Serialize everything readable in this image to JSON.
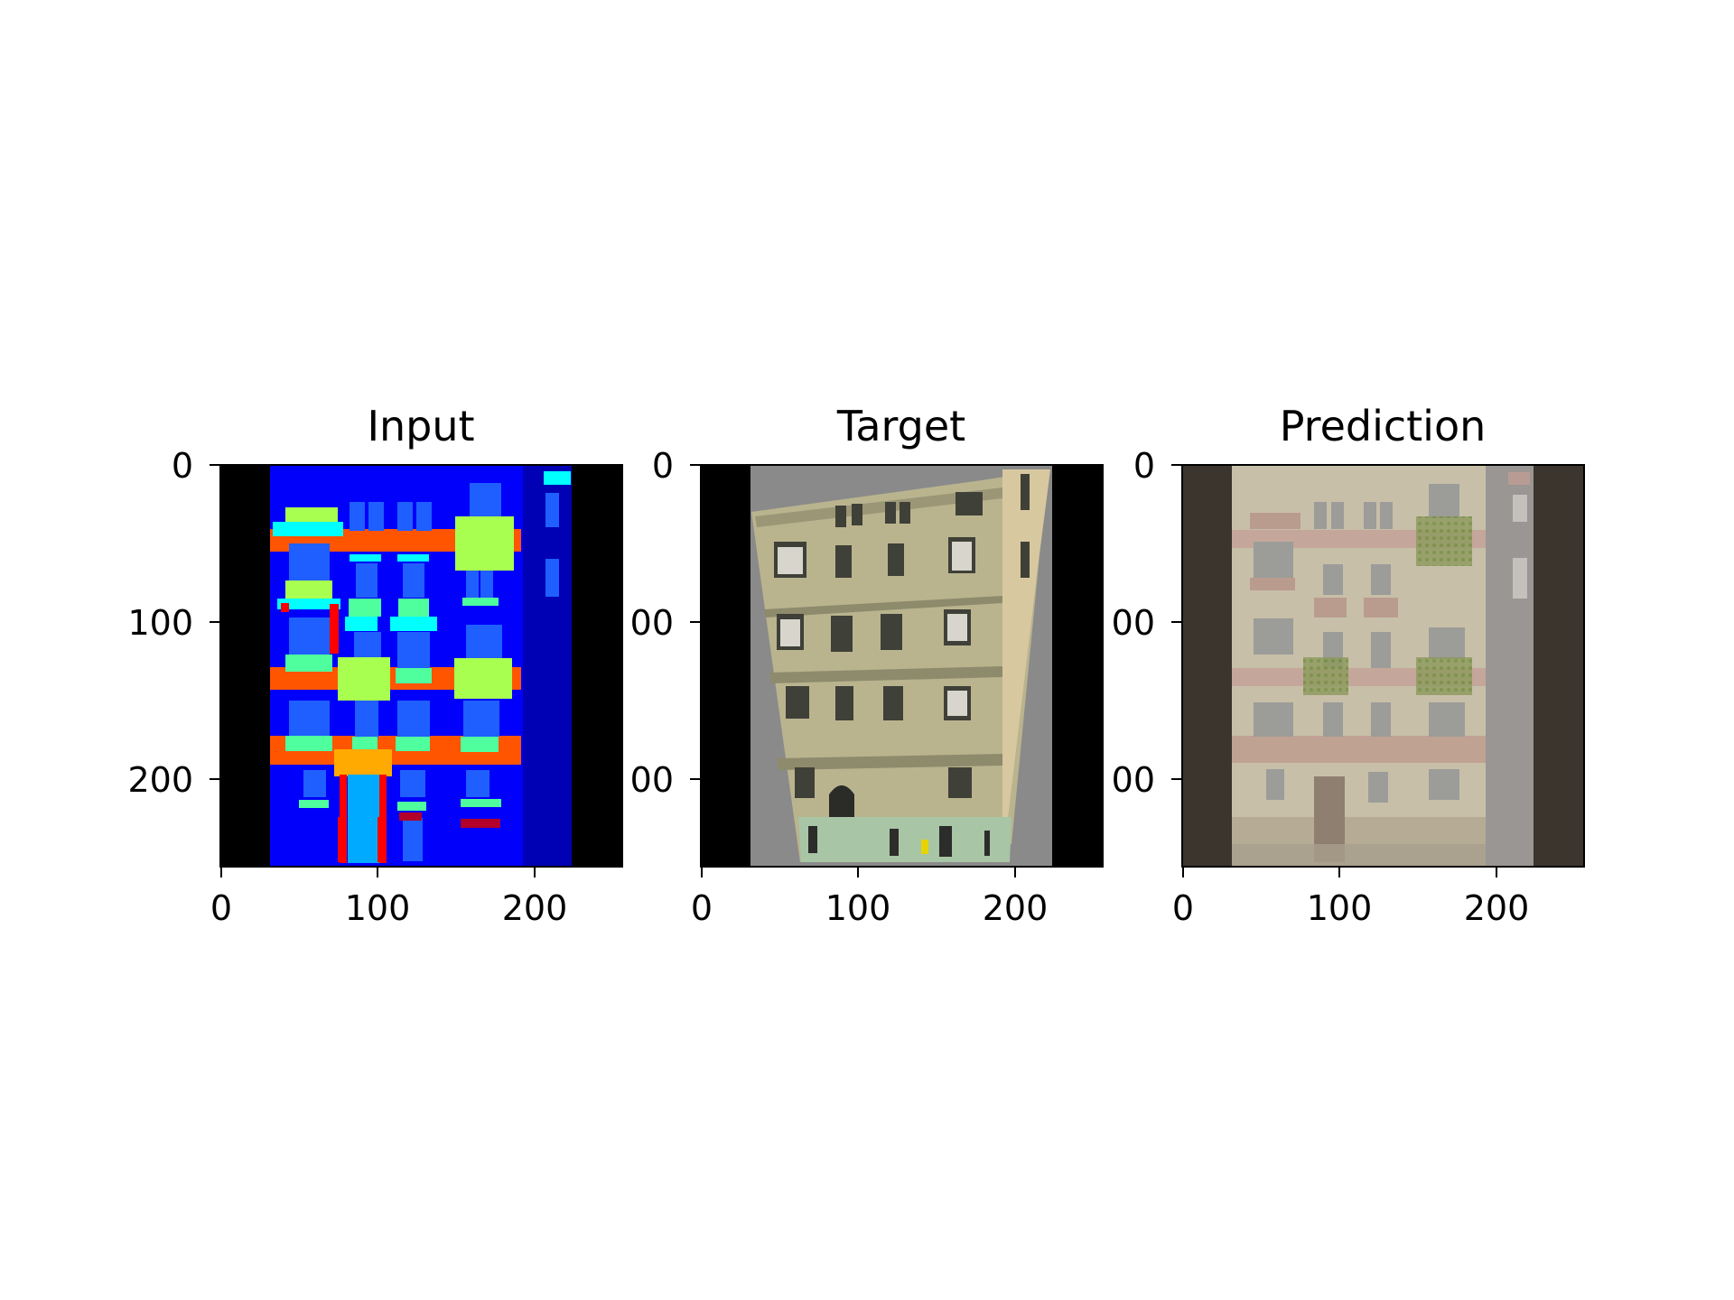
{
  "panels": [
    {
      "title": "Input",
      "x_ticks": [
        "0",
        "100",
        "200"
      ],
      "y_ticks": [
        "0",
        "100",
        "200"
      ]
    },
    {
      "title": "Target",
      "x_ticks": [
        "0",
        "100",
        "200"
      ],
      "y_ticks": [
        "00",
        "00",
        "00"
      ],
      "y_ticks_first": "0"
    },
    {
      "title": "Prediction",
      "x_ticks": [
        "0",
        "100",
        "200"
      ],
      "y_ticks": [
        "0",
        "00",
        "00"
      ]
    }
  ]
}
